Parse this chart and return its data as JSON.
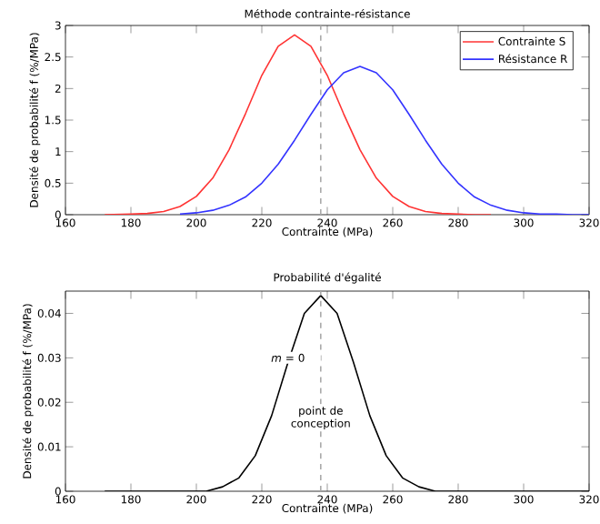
{
  "chart_data": [
    {
      "type": "line",
      "title": "Méthode contrainte-résistance",
      "xlabel": "Contrainte (MPa)",
      "ylabel": "Densité de probabilité f (%/MPa)",
      "series": [
        {
          "name": "Contrainte S",
          "color": "#ff3333",
          "x": [
            172,
            180,
            185,
            190,
            195,
            200,
            205,
            210,
            215,
            220,
            225,
            230,
            235,
            240,
            245,
            250,
            255,
            260,
            265,
            270,
            275,
            280,
            285,
            290
          ],
          "values": [
            0,
            0.01,
            0.02,
            0.05,
            0.13,
            0.29,
            0.58,
            1.03,
            1.6,
            2.21,
            2.67,
            2.85,
            2.67,
            2.21,
            1.6,
            1.03,
            0.58,
            0.29,
            0.13,
            0.05,
            0.02,
            0.01,
            0,
            0
          ]
        },
        {
          "name": "Résistance R",
          "color": "#3333ff",
          "x": [
            195,
            200,
            205,
            210,
            215,
            220,
            225,
            230,
            235,
            240,
            245,
            250,
            255,
            260,
            265,
            270,
            275,
            280,
            285,
            290,
            295,
            300,
            305,
            310,
            315,
            320
          ],
          "values": [
            0.01,
            0.03,
            0.07,
            0.15,
            0.28,
            0.5,
            0.8,
            1.18,
            1.59,
            1.98,
            2.25,
            2.35,
            2.25,
            1.98,
            1.59,
            1.18,
            0.8,
            0.5,
            0.28,
            0.15,
            0.07,
            0.03,
            0.01,
            0.01,
            0,
            0
          ]
        }
      ],
      "xlim": [
        160,
        320
      ],
      "xticks": [
        160,
        180,
        200,
        220,
        240,
        260,
        280,
        300,
        320
      ],
      "ylim": [
        0,
        3
      ],
      "yticks": [
        0,
        0.5,
        1,
        1.5,
        2,
        2.5,
        3
      ],
      "ref_lines": [
        {
          "axis": "x",
          "value": 238,
          "color": "#aaaaaa",
          "line_style": "dashed"
        }
      ],
      "legend": "top right",
      "grid": false,
      "marker": "none",
      "line_style": "solid"
    },
    {
      "type": "line",
      "title": "Probabilité d'égalité",
      "xlabel": "Contrainte (MPa)",
      "ylabel": "Densité de probabilité f (%/MPa)",
      "series": [
        {
          "color": "#000000",
          "x": [
            172,
            198,
            203,
            208,
            213,
            218,
            223,
            228,
            233,
            238,
            243,
            248,
            253,
            258,
            263,
            268,
            273,
            278,
            320
          ],
          "values": [
            0,
            0,
            0,
            0.001,
            0.003,
            0.008,
            0.017,
            0.029,
            0.04,
            0.044,
            0.04,
            0.029,
            0.017,
            0.008,
            0.003,
            0.001,
            0,
            0,
            0
          ]
        }
      ],
      "xlim": [
        160,
        320
      ],
      "xticks": [
        160,
        180,
        200,
        220,
        240,
        260,
        280,
        300,
        320
      ],
      "ylim": [
        0,
        0.045
      ],
      "yticks": [
        0,
        0.01,
        0.02,
        0.03,
        0.04
      ],
      "ref_lines": [
        {
          "axis": "x",
          "value": 238,
          "color": "#aaaaaa",
          "line_style": "dashed"
        }
      ],
      "annotations": [
        {
          "text": "*m* = 0",
          "x": 228,
          "y": 0.03
        },
        {
          "text": "point de conception",
          "x": 238,
          "y": 0.0165
        }
      ],
      "legend": false,
      "grid": false,
      "marker": "none",
      "line_style": "solid"
    }
  ]
}
